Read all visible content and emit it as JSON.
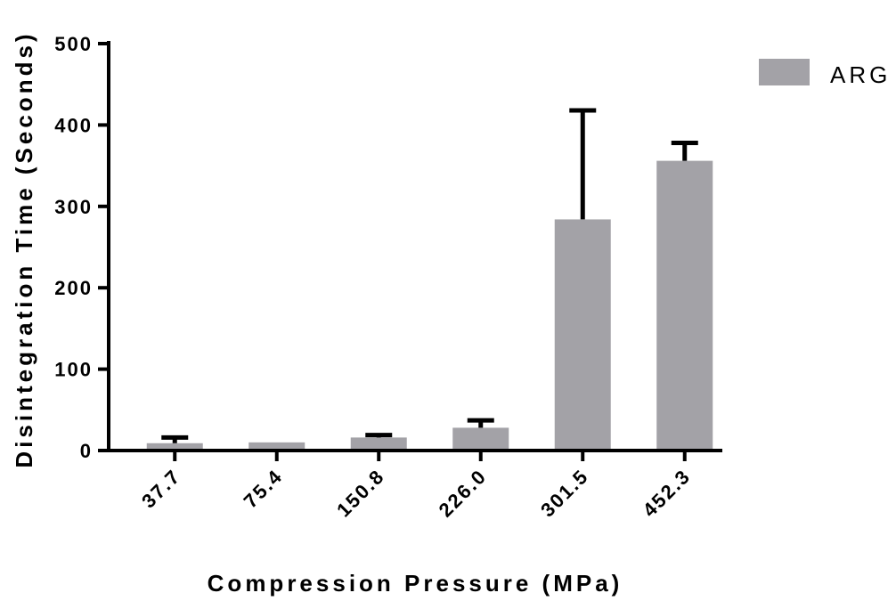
{
  "chart_data": {
    "type": "bar",
    "categories": [
      "37.7",
      "75.4",
      "150.8",
      "226.0",
      "301.5",
      "452.3"
    ],
    "series": [
      {
        "name": "ARG",
        "values": [
          9,
          10,
          16,
          28,
          284,
          356
        ],
        "error_upper": [
          7,
          0,
          3,
          9,
          134,
          22
        ]
      }
    ],
    "xlabel": "Compression Pressure (MPa)",
    "ylabel": "Disintegration Time (Seconds)",
    "ylim": [
      0,
      500
    ],
    "yticks": [
      "0",
      "100",
      "200",
      "300",
      "400",
      "500"
    ],
    "grid": false,
    "legend_position": "top-right",
    "colors": {
      "bar": "#a3a2a7",
      "error": "#000000",
      "axis": "#000000"
    }
  }
}
